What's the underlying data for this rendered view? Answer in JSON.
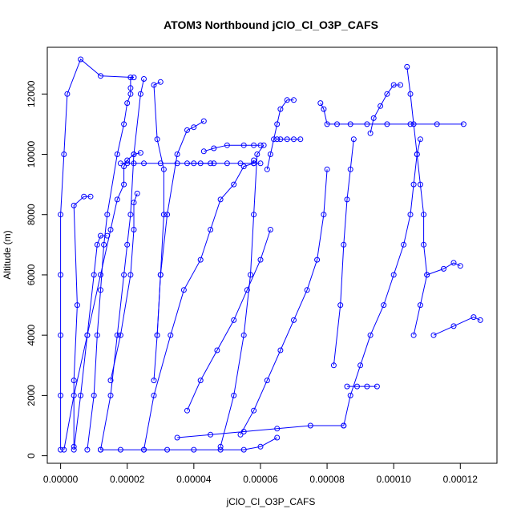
{
  "chart_data": {
    "type": "scatter",
    "title": "ATOM3 Northbound jClO_Cl_O3P_CAFS",
    "xlabel": "jClO_Cl_O3P_CAFS",
    "ylabel": "Altitude (m)",
    "xlim": [
      -4e-06,
      0.000131
    ],
    "ylim": [
      -250,
      13550
    ],
    "xticks": [
      0.0,
      2e-05,
      4e-05,
      6e-05,
      8e-05,
      0.0001,
      0.00012
    ],
    "xtick_labels": [
      "0.00000",
      "0.00002",
      "0.00004",
      "0.00006",
      "0.00008",
      "0.00010",
      "0.00012"
    ],
    "yticks": [
      0,
      2000,
      4000,
      6000,
      8000,
      10000,
      12000
    ],
    "ytick_labels": [
      "0",
      "2000",
      "4000",
      "6000",
      "8000",
      "10000",
      "12000"
    ],
    "marker": "open-circle",
    "grid": false,
    "color": "#0000ff",
    "series": [
      {
        "x": [
          0.0,
          0.0,
          0.0,
          0.0,
          0.0,
          1e-06,
          2e-06,
          6e-06,
          1.2e-05,
          2.2e-05
        ],
        "y": [
          200,
          2000,
          4000,
          6000,
          8000,
          10000,
          12000,
          13150,
          12600,
          12550
        ]
      },
      {
        "x": [
          1e-06,
          4e-06,
          8e-06,
          1.2e-05,
          1.5e-05,
          1.7e-05,
          1.9e-05,
          1.9e-05,
          2e-05,
          2.2e-05,
          2.4e-05
        ],
        "y": [
          200,
          2000,
          4000,
          6000,
          7500,
          8500,
          9000,
          9600,
          9800,
          10000,
          10050
        ]
      },
      {
        "x": [
          4e-06,
          6e-06,
          8e-06,
          1e-05,
          1.1e-05,
          1.2e-05,
          1.4e-05
        ],
        "y": [
          200,
          2000,
          4000,
          6000,
          7000,
          7300,
          7300
        ]
      },
      {
        "x": [
          4e-06,
          4e-06,
          5e-06,
          4e-06,
          7e-06,
          9e-06
        ],
        "y": [
          300,
          2500,
          5000,
          8300,
          8600,
          8600
        ]
      },
      {
        "x": [
          8e-06,
          1e-05,
          1.1e-05,
          1.2e-05,
          1.3e-05,
          1.4e-05,
          1.7e-05,
          1.9e-05,
          2e-05,
          2.1e-05,
          2.1e-05,
          2.1e-05
        ],
        "y": [
          200,
          2000,
          4000,
          5500,
          7000,
          8000,
          10000,
          11000,
          11700,
          12000,
          12200,
          12550
        ]
      },
      {
        "x": [
          1.2e-05,
          1.5e-05,
          1.7e-05,
          1.9e-05,
          2e-05,
          2.1e-05,
          2.2e-05,
          2.4e-05,
          2.5e-05
        ],
        "y": [
          200,
          2000,
          4000,
          6000,
          7000,
          8000,
          10000,
          12000,
          12500
        ]
      },
      {
        "x": [
          1.5e-05,
          1.8e-05,
          2.1e-05,
          2.2e-05,
          2.2e-05,
          2.3e-05
        ],
        "y": [
          2500,
          4000,
          6000,
          7500,
          8400,
          8700
        ]
      },
      {
        "x": [
          2.5e-05,
          2.8e-05,
          3.3e-05,
          3.7e-05,
          4.2e-05,
          4.5e-05,
          4.8e-05,
          5.2e-05,
          5.5e-05,
          5.8e-05,
          5.8e-05
        ],
        "y": [
          200,
          2000,
          4000,
          5500,
          6500,
          7500,
          8500,
          9000,
          9600,
          9700,
          9800
        ]
      },
      {
        "x": [
          1.8e-05,
          2e-05,
          2.2e-05,
          2.5e-05,
          3e-05,
          3.5e-05,
          4e-05,
          4.5e-05
        ],
        "y": [
          9700,
          9700,
          9700,
          9700,
          9700,
          9700,
          9700,
          9700
        ]
      },
      {
        "x": [
          3.8e-05,
          4.2e-05,
          4.6e-05,
          5e-05,
          5.4e-05,
          5.8e-05,
          6e-05
        ],
        "y": [
          9700,
          9700,
          9700,
          9700,
          9700,
          9700,
          9700
        ]
      },
      {
        "x": [
          2.8e-05,
          2.9e-05,
          3e-05,
          3.2e-05,
          3.5e-05,
          3.8e-05,
          4e-05,
          4.3e-05
        ],
        "y": [
          2500,
          4000,
          6000,
          8000,
          10000,
          10800,
          10900,
          11100
        ]
      },
      {
        "x": [
          2.9e-05,
          3e-05,
          3.1e-05,
          3.1e-05,
          2.9e-05,
          2.8e-05,
          3e-05
        ],
        "y": [
          4000,
          6000,
          8000,
          9500,
          10500,
          12300,
          12400
        ]
      },
      {
        "x": [
          4.3e-05,
          4.6e-05,
          5e-05,
          5.5e-05,
          5.8e-05,
          6e-05
        ],
        "y": [
          10100,
          10200,
          10300,
          10300,
          10300,
          10300
        ]
      },
      {
        "x": [
          3.8e-05,
          4.2e-05,
          4.7e-05,
          5.2e-05,
          5.6e-05,
          6e-05,
          6.3e-05
        ],
        "y": [
          1500,
          2500,
          3500,
          4500,
          5500,
          6500,
          7500
        ]
      },
      {
        "x": [
          4.8e-05,
          5.2e-05,
          5.5e-05,
          5.7e-05,
          5.8e-05,
          5.9e-05,
          6.1e-05
        ],
        "y": [
          300,
          2000,
          4000,
          6000,
          8000,
          10000,
          10300
        ]
      },
      {
        "x": [
          6.2e-05,
          6.3e-05,
          6.4e-05,
          6.5e-05,
          6.6e-05,
          6.8e-05,
          7e-05
        ],
        "y": [
          9500,
          10000,
          10500,
          11000,
          11500,
          11800,
          11800
        ]
      },
      {
        "x": [
          6.5e-05,
          6.6e-05,
          6.8e-05,
          7e-05,
          7.2e-05
        ],
        "y": [
          10500,
          10500,
          10500,
          10500,
          10500
        ]
      },
      {
        "x": [
          5.4e-05,
          5.8e-05,
          6.2e-05,
          6.6e-05,
          7e-05,
          7.4e-05,
          7.7e-05,
          7.9e-05,
          8e-05
        ],
        "y": [
          700,
          1500,
          2500,
          3500,
          4500,
          5500,
          6500,
          8000,
          9500
        ]
      },
      {
        "x": [
          7.8e-05,
          7.9e-05,
          8e-05,
          8.3e-05,
          8.7e-05,
          9.2e-05,
          9.8e-05,
          0.000105,
          0.000113,
          0.000121
        ],
        "y": [
          11700,
          11500,
          11000,
          11000,
          11000,
          11000,
          11000,
          11000,
          11000,
          11000
        ]
      },
      {
        "x": [
          8.2e-05,
          8.4e-05,
          8.5e-05,
          8.6e-05,
          8.7e-05,
          8.8e-05
        ],
        "y": [
          3000,
          5000,
          7000,
          8500,
          9500,
          10500
        ]
      },
      {
        "x": [
          8.5e-05,
          8.7e-05,
          9e-05,
          9.3e-05,
          9.7e-05,
          0.0001,
          0.000103,
          0.000105,
          0.000106,
          0.000107,
          0.000108
        ],
        "y": [
          1000,
          2000,
          3000,
          4000,
          5000,
          6000,
          7000,
          8000,
          9000,
          10000,
          10500
        ]
      },
      {
        "x": [
          9.3e-05,
          9.4e-05,
          9.6e-05,
          9.8e-05,
          0.0001,
          0.000102
        ],
        "y": [
          10700,
          11200,
          11600,
          12000,
          12300,
          12300
        ]
      },
      {
        "x": [
          0.000104,
          0.000105,
          0.000106,
          0.000107,
          0.000108,
          0.000109,
          0.000109,
          0.00011,
          0.000108,
          0.000106
        ],
        "y": [
          12900,
          12000,
          11000,
          10000,
          9000,
          8000,
          7000,
          6000,
          5000,
          4000
        ]
      },
      {
        "x": [
          8.6e-05,
          8.9e-05,
          9.2e-05,
          9.5e-05
        ],
        "y": [
          2300,
          2300,
          2300,
          2300
        ]
      },
      {
        "x": [
          1.2e-05,
          1.8e-05,
          2.5e-05,
          3.2e-05,
          4e-05,
          4.8e-05,
          5.5e-05,
          6e-05,
          6.5e-05
        ],
        "y": [
          200,
          200,
          200,
          200,
          200,
          200,
          200,
          300,
          600
        ]
      },
      {
        "x": [
          3.5e-05,
          4.5e-05,
          5.5e-05,
          6.5e-05,
          7.5e-05,
          8.5e-05
        ],
        "y": [
          600,
          700,
          800,
          900,
          1000,
          1000
        ]
      },
      {
        "x": [
          0.000112,
          0.000118,
          0.000124,
          0.000126
        ],
        "y": [
          4000,
          4300,
          4600,
          4500
        ]
      },
      {
        "x": [
          0.00011,
          0.000115,
          0.000118,
          0.00012
        ],
        "y": [
          6000,
          6200,
          6400,
          6300
        ]
      }
    ]
  }
}
